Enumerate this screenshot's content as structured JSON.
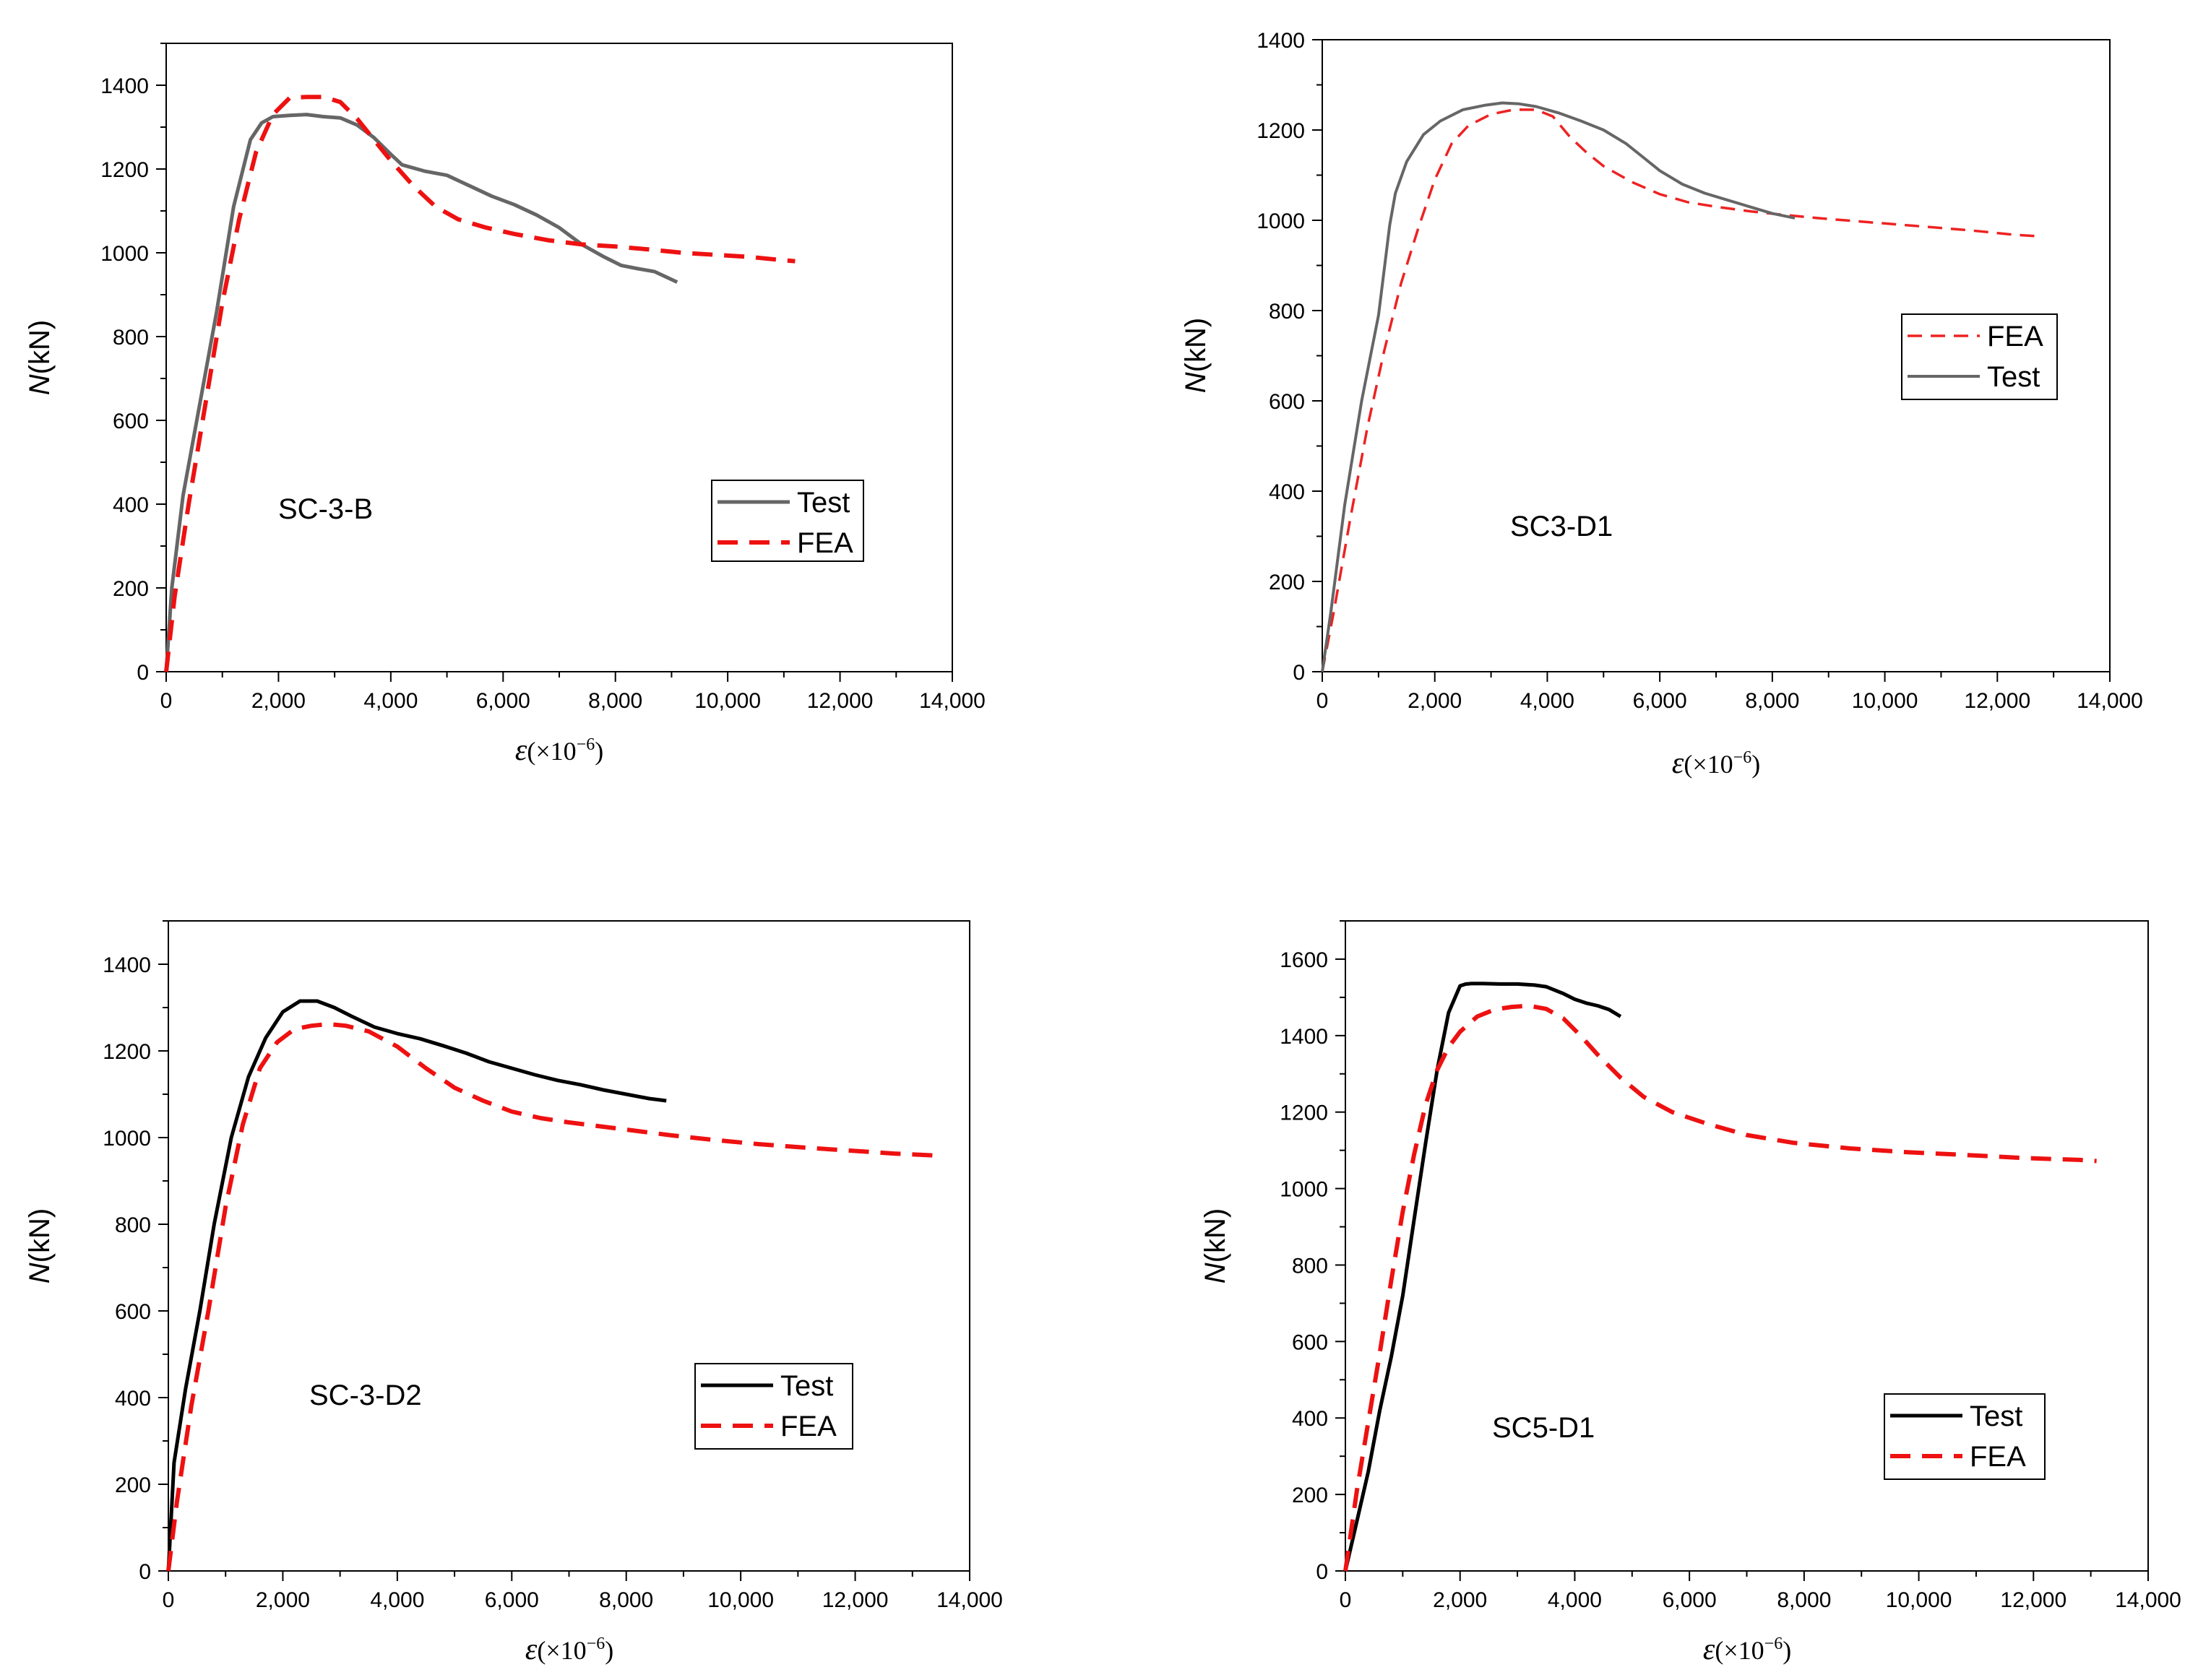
{
  "chart_data": [
    {
      "type": "line",
      "panel": "top-left",
      "annotation": "SC-3-B",
      "ylabel": {
        "italic": "N",
        "rest": "(kN)"
      },
      "xlabel": {
        "symbol": "ε",
        "open": "(×10",
        "sup": "−6",
        "close": ")"
      },
      "xlim": [
        0,
        14000
      ],
      "ylim": [
        0,
        1500
      ],
      "xticks": [
        0,
        2000,
        4000,
        6000,
        8000,
        10000,
        12000,
        14000
      ],
      "xtick_labels": [
        "0",
        "2,000",
        "4,000",
        "6,000",
        "8,000",
        "10,000",
        "12,000",
        "14,000"
      ],
      "yticks": [
        0,
        200,
        400,
        600,
        800,
        1000,
        1200,
        1400
      ],
      "ytick_labels": [
        "0",
        "200",
        "400",
        "600",
        "800",
        "1000",
        "1200",
        "1400"
      ],
      "legend_position": "lower-right",
      "legend_order": [
        "Test",
        "FEA"
      ],
      "series": [
        {
          "name": "Test",
          "color": "#666666",
          "dash": "solid",
          "x": [
            0,
            100,
            300,
            600,
            900,
            1200,
            1500,
            1700,
            1900,
            2200,
            2500,
            2800,
            3100,
            3400,
            3700,
            4000,
            4200,
            4600,
            5000,
            5400,
            5800,
            6200,
            6600,
            7000,
            7400,
            7800,
            8100,
            8400,
            8700,
            9100
          ],
          "y": [
            0,
            200,
            420,
            640,
            860,
            1110,
            1270,
            1310,
            1325,
            1328,
            1330,
            1325,
            1322,
            1305,
            1275,
            1235,
            1210,
            1195,
            1185,
            1160,
            1135,
            1115,
            1090,
            1060,
            1020,
            990,
            970,
            962,
            955,
            930
          ]
        },
        {
          "name": "FEA",
          "color": "#ee1111",
          "dash": "dashed",
          "x": [
            0,
            150,
            400,
            700,
            1000,
            1300,
            1600,
            1900,
            2200,
            2500,
            2800,
            3100,
            3400,
            3700,
            4000,
            4400,
            4800,
            5200,
            5700,
            6200,
            6800,
            7400,
            8000,
            8600,
            9200,
            9800,
            10400,
            11000,
            11200
          ],
          "y": [
            0,
            180,
            400,
            640,
            880,
            1080,
            1240,
            1330,
            1370,
            1372,
            1372,
            1360,
            1320,
            1270,
            1220,
            1160,
            1110,
            1080,
            1060,
            1045,
            1030,
            1020,
            1015,
            1008,
            1000,
            995,
            990,
            982,
            980
          ]
        }
      ]
    },
    {
      "type": "line",
      "panel": "top-right",
      "annotation": "SC3-D1",
      "ylabel": {
        "italic": "N",
        "rest": "(kN)"
      },
      "xlabel": {
        "symbol": "ε",
        "open": "(×10",
        "sup": "−6",
        "close": ")"
      },
      "xlim": [
        0,
        14000
      ],
      "ylim": [
        0,
        1400
      ],
      "xticks": [
        0,
        2000,
        4000,
        6000,
        8000,
        10000,
        12000,
        14000
      ],
      "xtick_labels": [
        "0",
        "2,000",
        "4,000",
        "6,000",
        "8,000",
        "10,000",
        "12,000",
        "14,000"
      ],
      "yticks": [
        0,
        200,
        400,
        600,
        800,
        1000,
        1200,
        1400
      ],
      "ytick_labels": [
        "0",
        "200",
        "400",
        "600",
        "800",
        "1000",
        "1200",
        "1400"
      ],
      "legend_position": "center-right",
      "legend_order": [
        "FEA",
        "Test"
      ],
      "series": [
        {
          "name": "FEA",
          "color": "#ee2222",
          "dash": "dashed",
          "x": [
            0,
            200,
            500,
            800,
            1100,
            1400,
            1700,
            2000,
            2300,
            2600,
            3000,
            3400,
            3800,
            4100,
            4400,
            4700,
            5000,
            5500,
            6000,
            6500,
            7000,
            7600,
            8200,
            8800,
            9500,
            10500,
            11500,
            12300,
            12700
          ],
          "y": [
            0,
            130,
            340,
            540,
            710,
            860,
            980,
            1090,
            1170,
            1210,
            1235,
            1245,
            1245,
            1230,
            1185,
            1150,
            1120,
            1085,
            1058,
            1040,
            1030,
            1020,
            1012,
            1005,
            998,
            988,
            978,
            968,
            965
          ]
        },
        {
          "name": "Test",
          "color": "#666666",
          "dash": "solid",
          "x": [
            0,
            150,
            400,
            700,
            1000,
            1200,
            1300,
            1500,
            1800,
            2100,
            2500,
            2900,
            3200,
            3500,
            3800,
            4200,
            4600,
            5000,
            5400,
            5700,
            6000,
            6400,
            6800,
            7200,
            7600,
            8000,
            8400
          ],
          "y": [
            0,
            130,
            370,
            600,
            790,
            990,
            1060,
            1130,
            1190,
            1220,
            1245,
            1255,
            1260,
            1258,
            1252,
            1238,
            1220,
            1200,
            1170,
            1140,
            1110,
            1080,
            1060,
            1045,
            1030,
            1015,
            1005
          ]
        }
      ]
    },
    {
      "type": "line",
      "panel": "bottom-left",
      "annotation": "SC-3-D2",
      "ylabel": {
        "italic": "N",
        "rest": "(kN)"
      },
      "xlabel": {
        "symbol": "ε",
        "open": "(×10",
        "sup": "−6",
        "close": ")"
      },
      "xlim": [
        0,
        14000
      ],
      "ylim": [
        0,
        1500
      ],
      "xticks": [
        0,
        2000,
        4000,
        6000,
        8000,
        10000,
        12000,
        14000
      ],
      "xtick_labels": [
        "0",
        "2,000",
        "4,000",
        "6,000",
        "8,000",
        "10,000",
        "12,000",
        "14,000"
      ],
      "yticks": [
        0,
        200,
        400,
        600,
        800,
        1000,
        1200,
        1400
      ],
      "ytick_labels": [
        "0",
        "200",
        "400",
        "600",
        "800",
        "1000",
        "1200",
        "1400"
      ],
      "legend_position": "lower-right",
      "legend_order": [
        "Test",
        "FEA"
      ],
      "series": [
        {
          "name": "Test",
          "color": "#000000",
          "dash": "solid",
          "x": [
            0,
            100,
            300,
            550,
            800,
            1100,
            1400,
            1700,
            2000,
            2300,
            2600,
            2900,
            3200,
            3600,
            4000,
            4400,
            4800,
            5200,
            5600,
            6000,
            6400,
            6800,
            7200,
            7600,
            8000,
            8400,
            8700
          ],
          "y": [
            0,
            250,
            420,
            600,
            800,
            1000,
            1140,
            1230,
            1290,
            1315,
            1315,
            1300,
            1280,
            1255,
            1240,
            1228,
            1212,
            1195,
            1175,
            1160,
            1145,
            1132,
            1122,
            1110,
            1100,
            1090,
            1085
          ]
        },
        {
          "name": "FEA",
          "color": "#ee1111",
          "dash": "dashed",
          "x": [
            0,
            150,
            400,
            700,
            1000,
            1300,
            1600,
            1900,
            2200,
            2500,
            2800,
            3100,
            3500,
            4000,
            4500,
            5000,
            5500,
            6000,
            6500,
            7000,
            7600,
            8200,
            8800,
            9500,
            10300,
            11100,
            11900,
            12700,
            13500
          ],
          "y": [
            0,
            160,
            380,
            600,
            840,
            1030,
            1160,
            1220,
            1250,
            1258,
            1262,
            1258,
            1245,
            1210,
            1160,
            1115,
            1085,
            1060,
            1045,
            1035,
            1025,
            1015,
            1005,
            995,
            985,
            977,
            970,
            963,
            958
          ]
        }
      ]
    },
    {
      "type": "line",
      "panel": "bottom-right",
      "annotation": "SC5-D1",
      "ylabel": {
        "italic": "N",
        "rest": "(kN)"
      },
      "xlabel": {
        "symbol": "ε",
        "open": "(×10",
        "sup": "−6",
        "close": ")"
      },
      "xlim": [
        0,
        14000
      ],
      "ylim": [
        0,
        1700
      ],
      "xticks": [
        0,
        2000,
        4000,
        6000,
        8000,
        10000,
        12000,
        14000
      ],
      "xtick_labels": [
        "0",
        "2,000",
        "4,000",
        "6,000",
        "8,000",
        "10,000",
        "12,000",
        "14,000"
      ],
      "yticks": [
        0,
        200,
        400,
        600,
        800,
        1000,
        1200,
        1400,
        1600
      ],
      "ytick_labels": [
        "0",
        "200",
        "400",
        "600",
        "800",
        "1000",
        "1200",
        "1400",
        "1600"
      ],
      "legend_position": "lower-right",
      "legend_order": [
        "Test",
        "FEA"
      ],
      "series": [
        {
          "name": "Test",
          "color": "#000000",
          "dash": "solid",
          "x": [
            0,
            200,
            400,
            600,
            800,
            1000,
            1200,
            1400,
            1600,
            1800,
            2000,
            2100,
            2200,
            2400,
            2700,
            3000,
            3300,
            3500,
            3800,
            4000,
            4200,
            4400,
            4600,
            4800
          ],
          "y": [
            0,
            130,
            260,
            420,
            560,
            720,
            920,
            1120,
            1310,
            1460,
            1530,
            1535,
            1536,
            1536,
            1535,
            1535,
            1532,
            1528,
            1510,
            1495,
            1485,
            1478,
            1468,
            1450
          ]
        },
        {
          "name": "FEA",
          "color": "#ee1111",
          "dash": "dashed",
          "x": [
            0,
            200,
            400,
            600,
            800,
            1000,
            1200,
            1400,
            1600,
            1800,
            2000,
            2300,
            2600,
            2900,
            3200,
            3500,
            3800,
            4100,
            4400,
            4800,
            5200,
            5700,
            6300,
            7000,
            7800,
            8800,
            9800,
            10800,
            11800,
            12800,
            13100
          ],
          "y": [
            0,
            210,
            390,
            570,
            760,
            940,
            1090,
            1220,
            1310,
            1370,
            1410,
            1450,
            1468,
            1475,
            1478,
            1470,
            1445,
            1400,
            1350,
            1290,
            1240,
            1200,
            1170,
            1140,
            1120,
            1105,
            1095,
            1088,
            1080,
            1075,
            1072
          ]
        }
      ]
    }
  ]
}
